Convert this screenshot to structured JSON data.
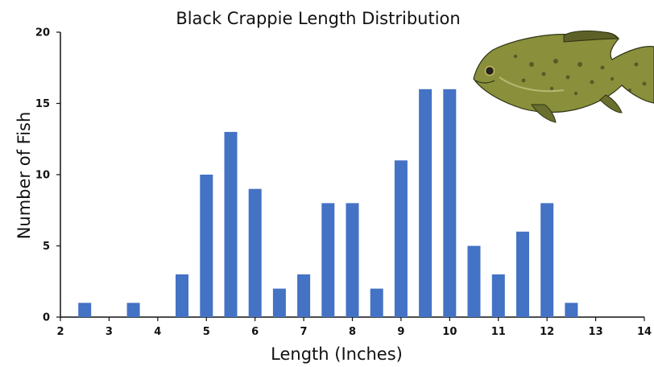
{
  "chart_data": {
    "type": "bar",
    "title": "Black Crappie Length Distribution",
    "xlabel": "Length (Inches)",
    "ylabel": "Number of Fish",
    "x": [
      2.5,
      3.5,
      4.5,
      5,
      5.5,
      6,
      6.5,
      7,
      7.5,
      8,
      8.5,
      9,
      9.5,
      10,
      10.5,
      11,
      11.5,
      12,
      12.5
    ],
    "values": [
      1,
      1,
      3,
      10,
      13,
      9,
      2,
      3,
      8,
      8,
      2,
      11,
      16,
      16,
      5,
      3,
      6,
      8,
      1
    ],
    "xlim": [
      2,
      14
    ],
    "ylim": [
      0,
      20
    ],
    "xticks": [
      "2",
      "3",
      "4",
      "5",
      "6",
      "7",
      "8",
      "9",
      "10",
      "11",
      "12",
      "13",
      "14"
    ],
    "yticks": [
      "0",
      "5",
      "10",
      "15",
      "20"
    ],
    "bar_color": "#4472c4",
    "grid": false,
    "decoration": "black-crappie-fish-illustration"
  }
}
